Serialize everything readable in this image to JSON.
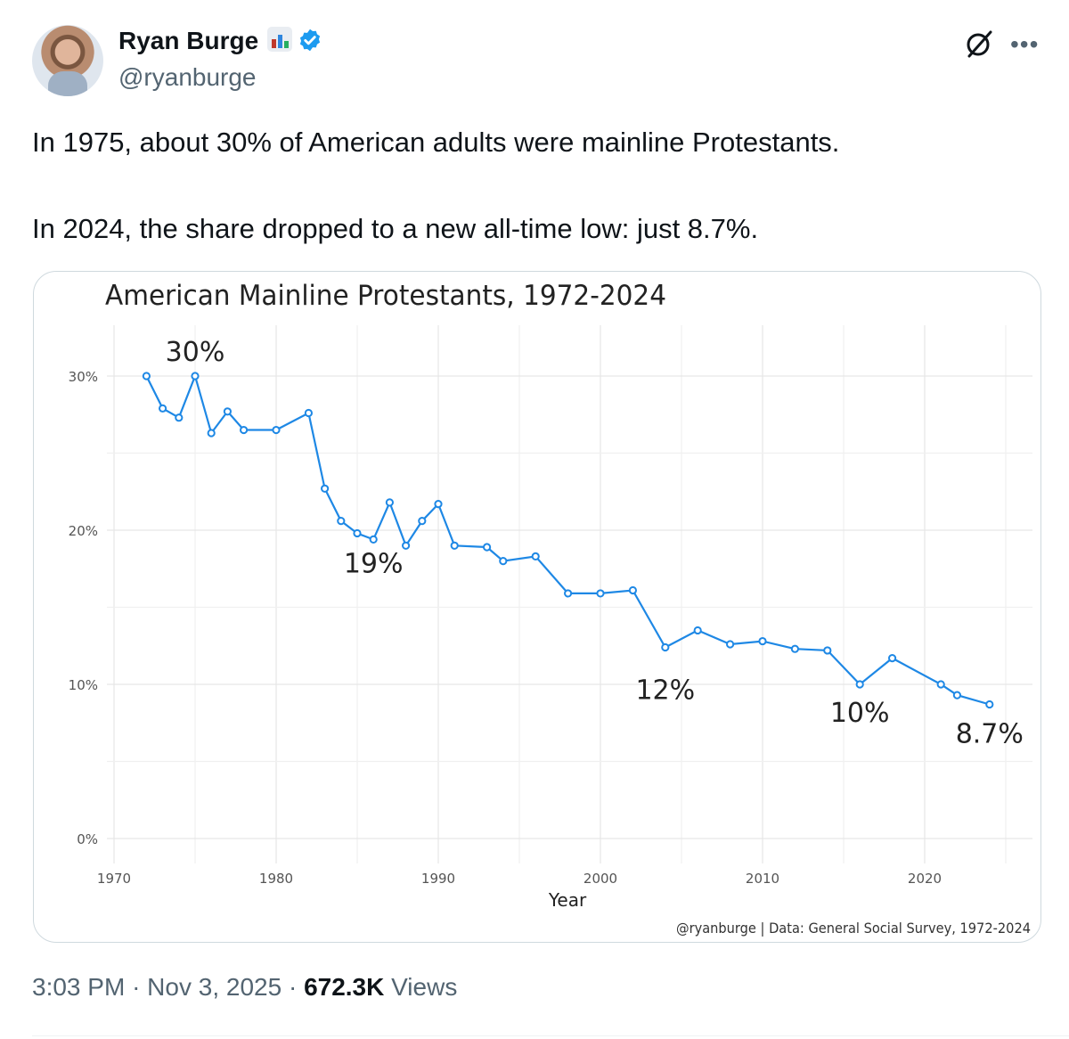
{
  "author": {
    "name": "Ryan Burge",
    "handle": "@ryanburge"
  },
  "tweet": {
    "line1": "In 1975, about 30% of American adults were mainline Protestants.",
    "line2": "In 2024, the share dropped to a new all-time low: just 8.7%."
  },
  "meta": {
    "time": "3:03 PM",
    "sep1": "·",
    "date": "Nov 3, 2025",
    "sep2": "·",
    "views_count": "672.3K",
    "views_label": "Views"
  },
  "colors": {
    "line": "#1e88e5",
    "verified": "#1d9bf0"
  },
  "chart_data": {
    "type": "line",
    "title": "American Mainline Protestants, 1972-2024",
    "xlabel": "Year",
    "ylabel": "",
    "caption": "@ryanburge | Data: General Social Survey, 1972-2024",
    "xlim": [
      1970,
      2026
    ],
    "ylim": [
      0,
      32
    ],
    "x_ticks": [
      1970,
      1980,
      1990,
      2000,
      2010,
      2020
    ],
    "y_ticks": [
      0,
      10,
      20,
      30
    ],
    "y_tick_labels": [
      "0%",
      "10%",
      "20%",
      "30%"
    ],
    "series": [
      {
        "name": "Mainline Protestant share",
        "x": [
          1972,
          1973,
          1974,
          1975,
          1976,
          1977,
          1978,
          1980,
          1982,
          1983,
          1984,
          1985,
          1986,
          1987,
          1988,
          1989,
          1990,
          1991,
          1993,
          1994,
          1996,
          1998,
          2000,
          2002,
          2004,
          2006,
          2008,
          2010,
          2012,
          2014,
          2016,
          2018,
          2021,
          2022,
          2024
        ],
        "values": [
          30.0,
          27.9,
          27.3,
          30.0,
          26.3,
          27.7,
          26.5,
          26.5,
          27.6,
          22.7,
          20.6,
          19.8,
          19.4,
          21.8,
          19.0,
          20.6,
          21.7,
          19.0,
          18.9,
          18.0,
          18.3,
          15.9,
          15.9,
          16.1,
          12.4,
          13.5,
          12.6,
          12.8,
          12.3,
          12.2,
          10.0,
          11.7,
          10.0,
          9.3,
          8.7
        ]
      }
    ],
    "annotations": [
      {
        "x": 1975,
        "y": 30.0,
        "label": "30%"
      },
      {
        "x": 1986,
        "y": 19.4,
        "label": "19%"
      },
      {
        "x": 2004,
        "y": 12.4,
        "label": "12%"
      },
      {
        "x": 2016,
        "y": 10.0,
        "label": "10%"
      },
      {
        "x": 2024,
        "y": 8.7,
        "label": "8.7%"
      }
    ]
  }
}
